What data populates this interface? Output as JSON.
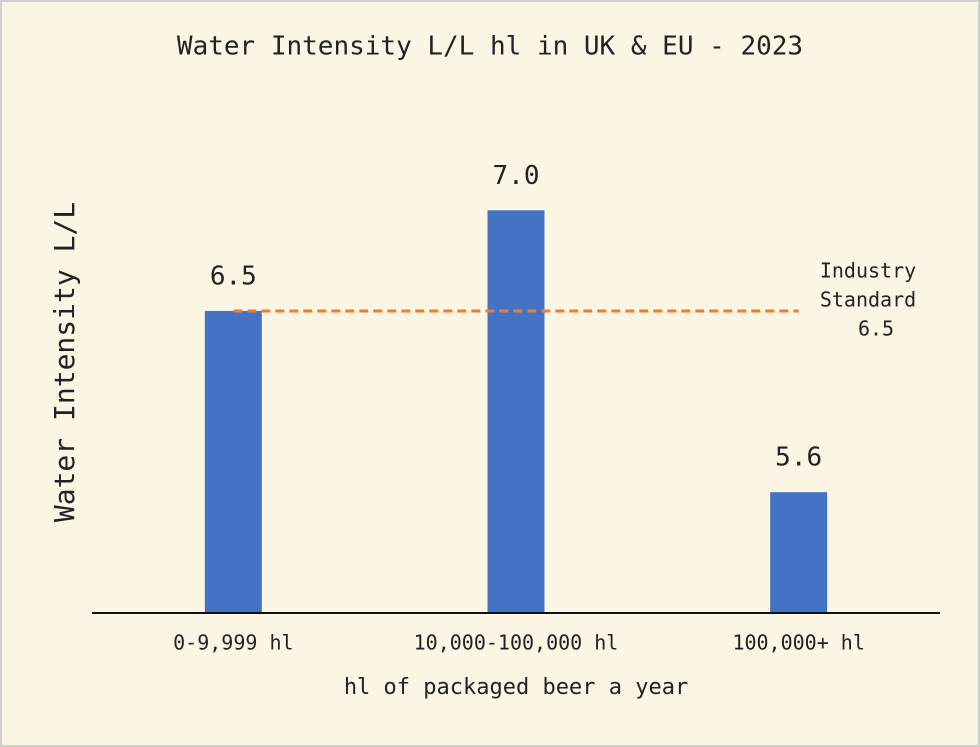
{
  "chart_data": {
    "type": "bar",
    "title": "Water Intensity L/L hl in UK & EU - 2023",
    "x_label": "hl of packaged beer a year",
    "y_label": "Water Intensity L/L",
    "categories": [
      "0-9,999 hl",
      "10,000-100,000 hl",
      "100,000+ hl"
    ],
    "values": [
      6.5,
      7.0,
      5.6
    ],
    "value_labels": [
      "6.5",
      "7.0",
      "5.6"
    ],
    "color": "#4472c4",
    "ylim": [
      5.0,
      7.2
    ],
    "reference_line": {
      "value": 6.5,
      "label_lines": [
        "Industry",
        "Standard"
      ],
      "color": "#ed7d31"
    }
  }
}
